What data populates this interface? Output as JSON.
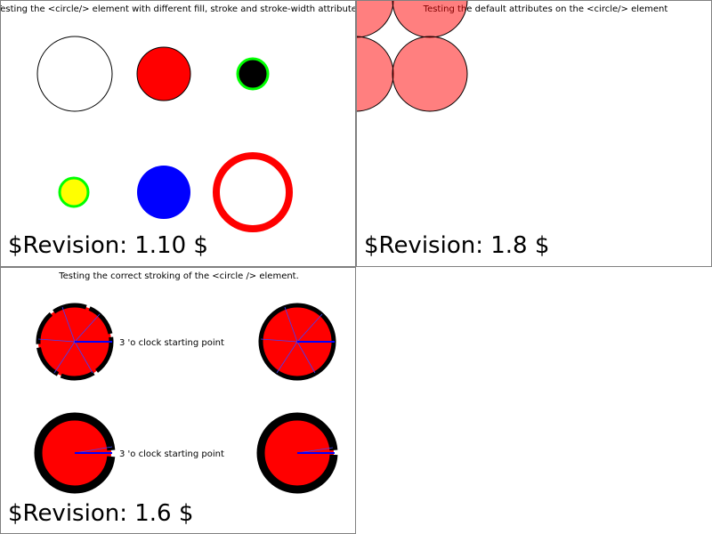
{
  "panels": [
    {
      "title": "Testing the <circle/> element with different fill, stroke and stroke-width attributes",
      "revision": "$Revision: 1.10 $"
    },
    {
      "title": "Testing the default attributes on the <circle/> element",
      "revision": "$Revision: 1.8 $"
    },
    {
      "title": "Testing the correct stroking of the <circle /> element.",
      "revision": "$Revision: 1.6 $",
      "labels": [
        "3 'o clock starting point",
        "3 'o clock starting point"
      ]
    }
  ],
  "colors": {
    "red": "#ff0000",
    "blue": "#0000ff",
    "green": "#00ff00",
    "yellow": "#ffff00",
    "pink": "#ff8080"
  }
}
